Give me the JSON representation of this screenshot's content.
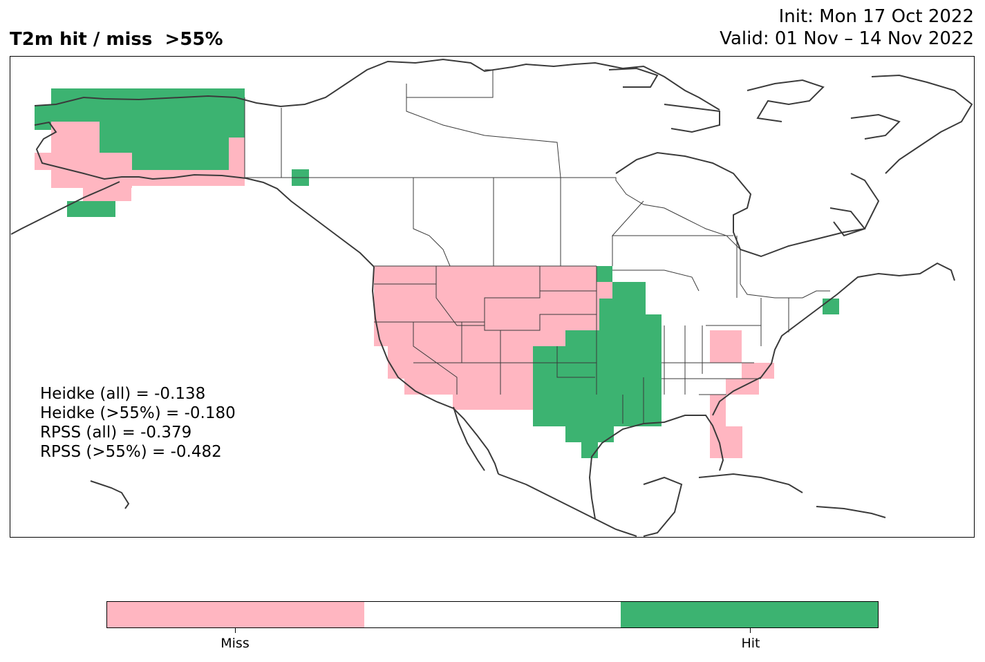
{
  "header": {
    "title": "T2m hit / miss  >55%",
    "init": "Init: Mon 17 Oct 2022",
    "valid": "Valid: 01 Nov – 14 Nov 2022"
  },
  "stats": {
    "heidke_all": "Heidke (all) = -0.138",
    "heidke_55": "Heidke (>55%) = -0.180",
    "rpss_all": "RPSS (all) = -0.379",
    "rpss_55": "RPSS (>55%) = -0.482"
  },
  "colors": {
    "miss": "#ffb6c1",
    "neutral": "#ffffff",
    "hit": "#3cb371",
    "coast": "#3a3a3a"
  },
  "legend": {
    "miss_label": "Miss",
    "hit_label": "Hit"
  }
}
